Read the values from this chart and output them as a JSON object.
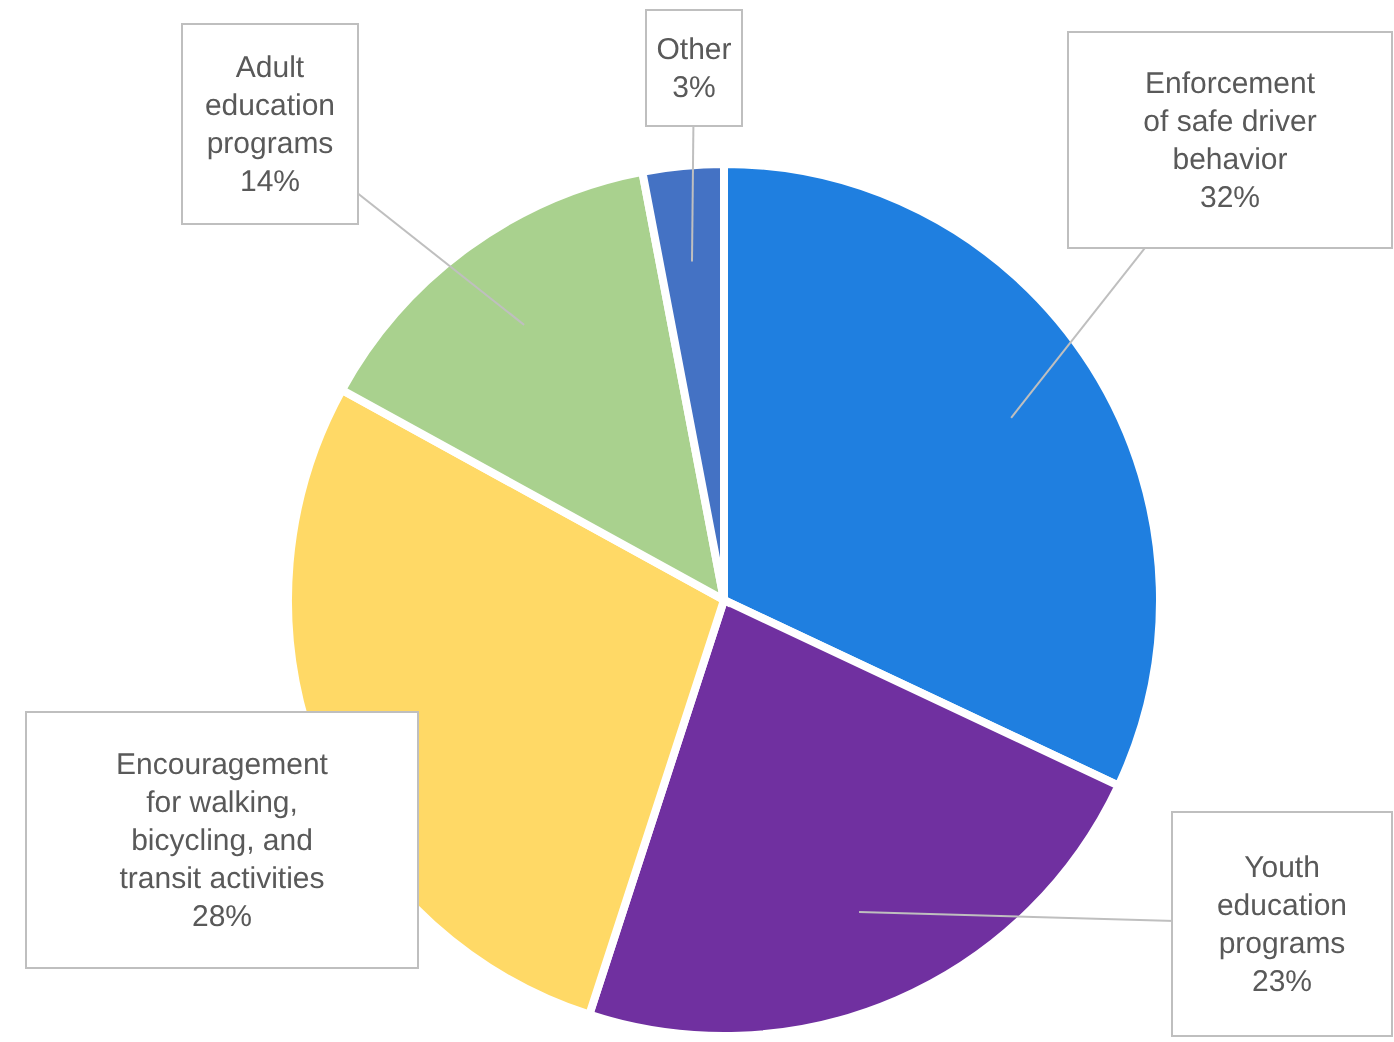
{
  "chart_data": {
    "type": "pie",
    "categories": [
      "Enforcement\nof safe driver\nbehavior",
      "Youth\neducation\nprograms",
      "Encouragement\nfor walking,\nbicycling, and\ntransit activities",
      "Adult\neducation\nprograms",
      "Other"
    ],
    "values": [
      32,
      23,
      28,
      14,
      3
    ],
    "value_labels": [
      "32%",
      "23%",
      "28%",
      "14%",
      "3%"
    ],
    "colors": [
      "#1f7fe0",
      "#7030a0",
      "#ffd966",
      "#a9d18e",
      "#4472c4"
    ]
  }
}
